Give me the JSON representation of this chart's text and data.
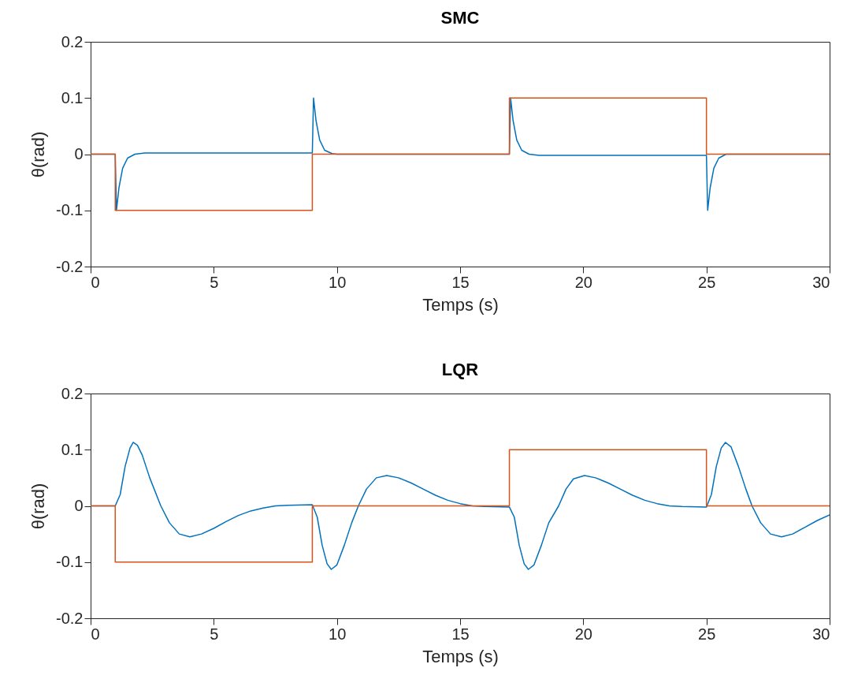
{
  "chart_data": [
    {
      "type": "line",
      "title": "SMC",
      "xlabel": "Temps (s)",
      "ylabel": "θ(rad)",
      "xlim": [
        0,
        30
      ],
      "ylim": [
        -0.2,
        0.2
      ],
      "xticks": [
        0,
        5,
        10,
        15,
        20,
        25,
        30
      ],
      "yticks": [
        -0.2,
        -0.1,
        0,
        0.1,
        0.2
      ],
      "series": [
        {
          "color": "#0072bd",
          "x": [
            0,
            1,
            1.05,
            1.15,
            1.3,
            1.5,
            1.8,
            2.2,
            9,
            9.05,
            9.15,
            9.3,
            9.5,
            9.8,
            10,
            17,
            17.05,
            17.15,
            17.3,
            17.5,
            17.8,
            18.2,
            25,
            25.05,
            25.15,
            25.3,
            25.5,
            25.8,
            30
          ],
          "values": [
            0,
            0,
            -0.1,
            -0.06,
            -0.025,
            -0.007,
            0,
            0.002,
            0.002,
            0.1,
            0.06,
            0.025,
            0.007,
            0.001,
            0,
            0,
            0.1,
            0.06,
            0.025,
            0.007,
            0,
            -0.002,
            -0.002,
            -0.1,
            -0.06,
            -0.025,
            -0.007,
            0,
            0
          ]
        },
        {
          "type": "step",
          "color": "#d95319",
          "x": [
            0,
            1,
            9,
            17,
            25,
            30
          ],
          "values": [
            0,
            -0.1,
            0,
            0.1,
            0,
            0
          ]
        }
      ]
    },
    {
      "type": "line",
      "title": "LQR",
      "xlabel": "Temps (s)",
      "ylabel": "θ(rad)",
      "xlim": [
        0,
        30
      ],
      "ylim": [
        -0.2,
        0.2
      ],
      "xticks": [
        0,
        5,
        10,
        15,
        20,
        25,
        30
      ],
      "yticks": [
        -0.2,
        -0.1,
        0,
        0.1,
        0.2
      ],
      "series": [
        {
          "color": "#0072bd",
          "x": [
            0,
            1,
            1.2,
            1.4,
            1.6,
            1.73,
            1.9,
            2.1,
            2.4,
            2.85,
            3.2,
            3.6,
            4.03,
            4.5,
            5,
            5.5,
            6,
            6.5,
            7,
            7.5,
            8,
            9,
            9.2,
            9.4,
            9.6,
            9.77,
            10,
            10.3,
            10.6,
            10.87,
            11.2,
            11.6,
            12.02,
            12.5,
            13,
            13.5,
            14,
            14.5,
            15,
            15.5,
            16,
            17,
            17.2,
            17.4,
            17.6,
            17.77,
            18,
            18.3,
            18.6,
            19,
            19.3,
            19.6,
            20.05,
            20.5,
            21,
            21.5,
            22,
            22.5,
            23,
            23.5,
            24,
            25,
            25.2,
            25.4,
            25.6,
            25.77,
            26,
            26.3,
            26.6,
            26.85,
            27.2,
            27.6,
            28.05,
            28.5,
            29,
            29.5,
            30
          ],
          "values": [
            0,
            0,
            0.02,
            0.07,
            0.103,
            0.113,
            0.108,
            0.09,
            0.05,
            0,
            -0.03,
            -0.05,
            -0.055,
            -0.05,
            -0.04,
            -0.028,
            -0.017,
            -0.009,
            -0.004,
            0,
            0.001,
            0.002,
            -0.02,
            -0.07,
            -0.103,
            -0.113,
            -0.105,
            -0.07,
            -0.03,
            0,
            0.03,
            0.05,
            0.054,
            0.05,
            0.041,
            0.03,
            0.019,
            0.01,
            0.004,
            0,
            -0.001,
            -0.002,
            -0.02,
            -0.07,
            -0.103,
            -0.113,
            -0.105,
            -0.07,
            -0.03,
            0,
            0.03,
            0.048,
            0.054,
            0.05,
            0.041,
            0.03,
            0.019,
            0.01,
            0.004,
            0,
            -0.001,
            -0.002,
            0.02,
            0.07,
            0.103,
            0.113,
            0.105,
            0.07,
            0.03,
            0,
            -0.03,
            -0.05,
            -0.055,
            -0.05,
            -0.038,
            -0.026,
            -0.016
          ]
        },
        {
          "type": "step",
          "color": "#d95319",
          "x": [
            0,
            1,
            9,
            17,
            25,
            30
          ],
          "values": [
            0,
            -0.1,
            0,
            0.1,
            0,
            0
          ]
        }
      ]
    }
  ]
}
